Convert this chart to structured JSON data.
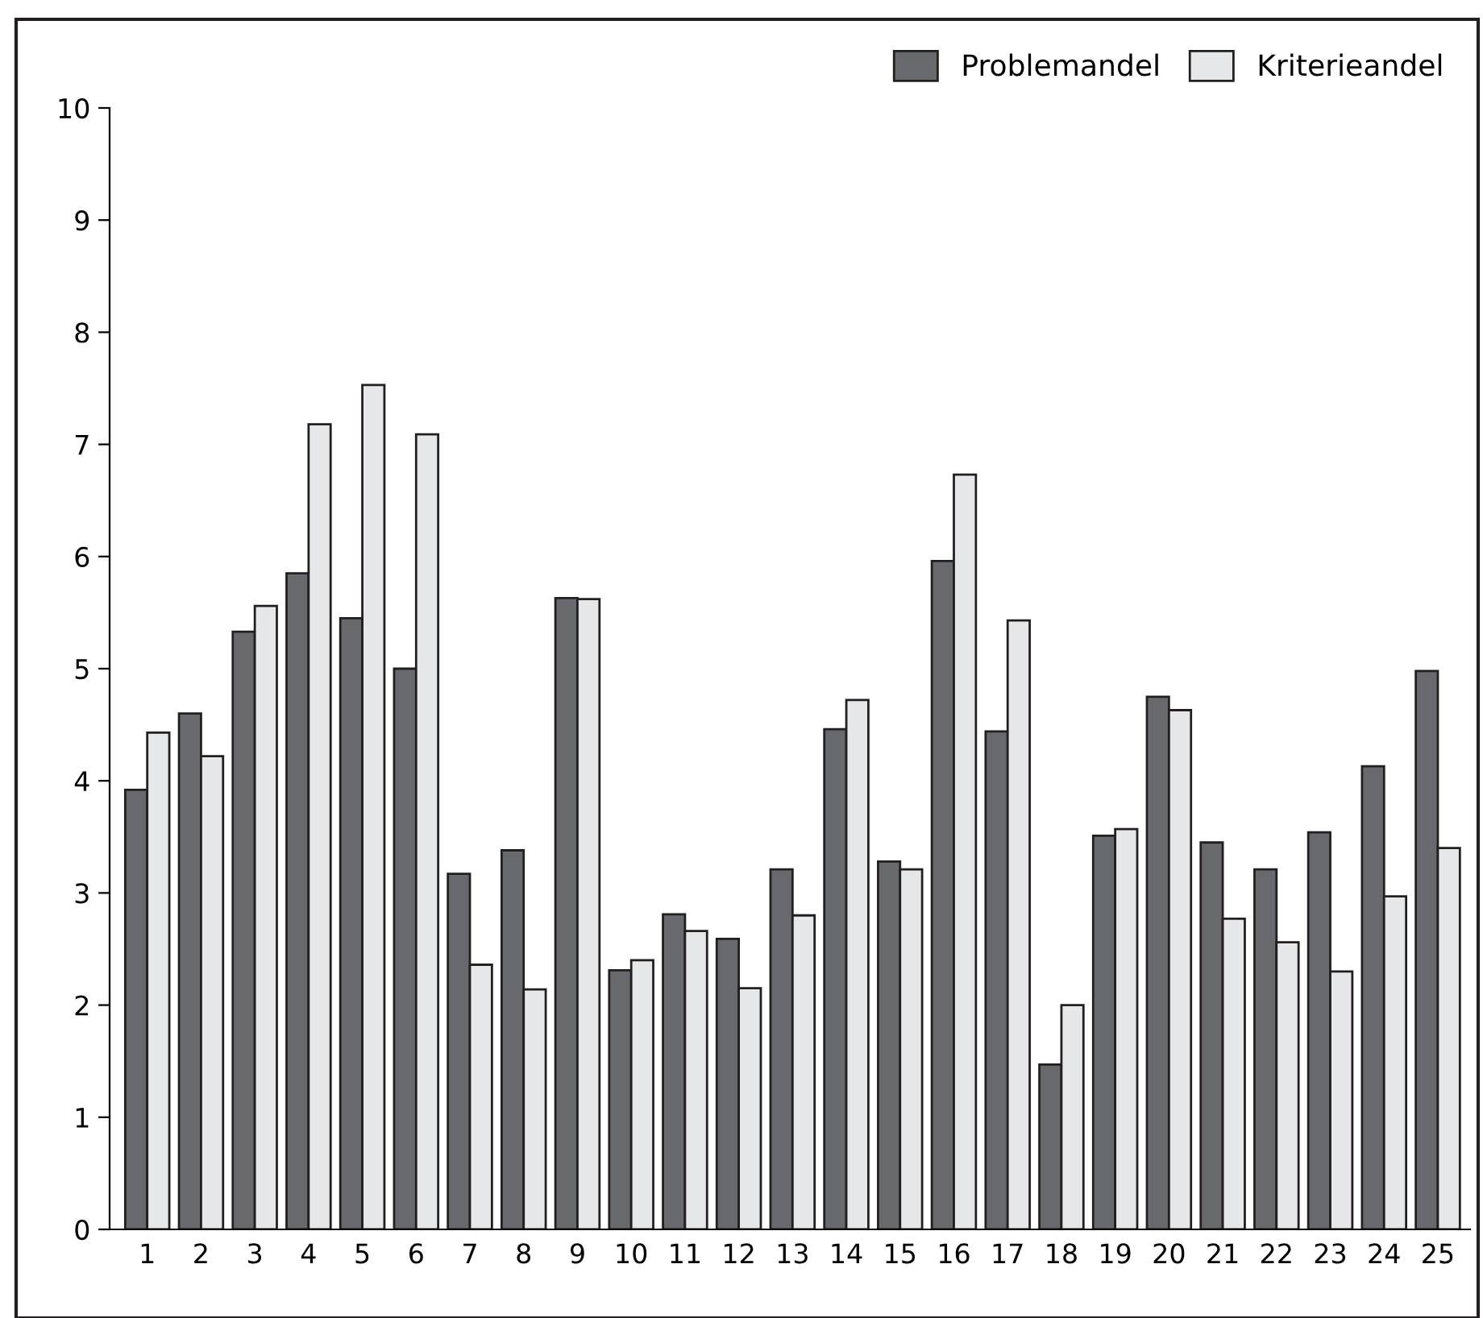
{
  "chart_data": {
    "type": "bar",
    "categories": [
      "1",
      "2",
      "3",
      "4",
      "5",
      "6",
      "7",
      "8",
      "9",
      "10",
      "11",
      "12",
      "13",
      "14",
      "15",
      "16",
      "17",
      "18",
      "19",
      "20",
      "21",
      "22",
      "23",
      "24",
      "25"
    ],
    "series": [
      {
        "name": "Problemandel",
        "color": "#68696d",
        "values": [
          3.92,
          4.6,
          5.33,
          5.85,
          5.45,
          5.0,
          3.17,
          3.38,
          5.63,
          2.31,
          2.81,
          2.59,
          3.21,
          4.46,
          3.28,
          5.96,
          4.44,
          1.47,
          3.51,
          4.75,
          3.45,
          3.21,
          3.54,
          4.13,
          4.98
        ]
      },
      {
        "name": "Kriterieandel",
        "color": "#e6e7e8",
        "values": [
          4.43,
          4.22,
          5.56,
          7.18,
          7.53,
          7.09,
          2.36,
          2.14,
          5.62,
          2.4,
          2.66,
          2.15,
          2.8,
          4.72,
          3.21,
          6.73,
          5.43,
          2.0,
          3.57,
          4.63,
          2.77,
          2.56,
          2.3,
          2.97,
          3.4
        ]
      }
    ],
    "ylim": [
      0,
      10
    ],
    "yticks": [
      0,
      1,
      2,
      3,
      4,
      5,
      6,
      7,
      8,
      9,
      10
    ],
    "grid": false,
    "legend": "top right"
  }
}
